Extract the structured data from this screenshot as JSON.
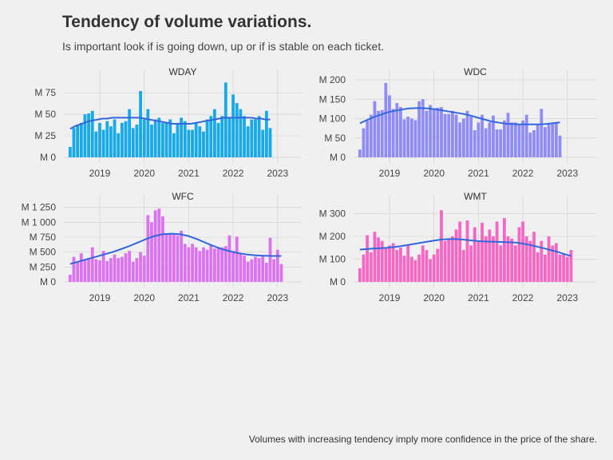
{
  "title": "Tendency of volume variations.",
  "subtitle": "Is important look if is going down, up or if is stable on each ticket.",
  "caption": "Volumes with increasing tendency imply more confidence in the price of the share.",
  "chart_data": {
    "type": "bar",
    "x_start": "2018-05",
    "x_ticks": [
      2019,
      2020,
      2021,
      2022,
      2023
    ],
    "grid": true,
    "facets": [
      {
        "name": "WDAY",
        "color": "#17a9e8",
        "y_ticks": [
          "M 0",
          "M 25",
          "M 50",
          "M 75"
        ],
        "y_tick_values": [
          0,
          25,
          50,
          75
        ],
        "ylim": [
          0,
          90
        ],
        "values": [
          12,
          34,
          38,
          40,
          50,
          51,
          54,
          30,
          40,
          32,
          42,
          36,
          44,
          28,
          40,
          42,
          56,
          34,
          38,
          77,
          44,
          56,
          38,
          44,
          46,
          40,
          40,
          44,
          28,
          40,
          46,
          42,
          32,
          32,
          40,
          36,
          30,
          44,
          48,
          56,
          40,
          48,
          87,
          46,
          73,
          63,
          56,
          48,
          36,
          44,
          44,
          48,
          32,
          54,
          34
        ],
        "trend": [
          33,
          36,
          38,
          40,
          42,
          43,
          44,
          45,
          45,
          46,
          46,
          46,
          46,
          46,
          46,
          46,
          45,
          44,
          43,
          42,
          41,
          40,
          39,
          39,
          39,
          39,
          39,
          40,
          41,
          42,
          43,
          44,
          45,
          46,
          46,
          46,
          46,
          46,
          46,
          46,
          45,
          45,
          44,
          44
        ]
      },
      {
        "name": "WDC",
        "color": "#8f8cf5",
        "y_ticks": [
          "M 0",
          "M 50",
          "M 100",
          "M 150",
          "M 200"
        ],
        "y_tick_values": [
          0,
          50,
          100,
          150,
          200
        ],
        "ylim": [
          0,
          200
        ],
        "values": [
          20,
          75,
          95,
          110,
          145,
          120,
          122,
          192,
          160,
          125,
          140,
          130,
          98,
          105,
          100,
          96,
          145,
          150,
          120,
          135,
          125,
          128,
          130,
          112,
          112,
          120,
          110,
          90,
          100,
          120,
          105,
          70,
          90,
          110,
          75,
          90,
          108,
          72,
          72,
          95,
          115,
          90,
          90,
          85,
          95,
          110,
          64,
          70,
          85,
          125,
          78,
          85,
          88,
          90,
          56
        ],
        "trend": [
          88,
          96,
          104,
          110,
          116,
          120,
          123,
          126,
          127,
          127,
          126,
          124,
          121,
          118,
          115,
          112,
          108,
          103,
          98,
          93,
          90,
          87,
          86,
          85,
          85,
          85,
          85,
          86,
          88,
          90
        ]
      },
      {
        "name": "WFC",
        "color": "#db73f0",
        "y_ticks": [
          "M 0",
          "M 250",
          "M 500",
          "M 750",
          "M 1 000",
          "M 1 250"
        ],
        "y_tick_values": [
          0,
          250,
          500,
          750,
          1000,
          1250
        ],
        "ylim": [
          0,
          1300
        ],
        "values": [
          120,
          420,
          330,
          480,
          380,
          400,
          580,
          380,
          360,
          520,
          350,
          400,
          460,
          400,
          420,
          480,
          520,
          340,
          400,
          500,
          440,
          1120,
          1000,
          1200,
          1230,
          1100,
          800,
          820,
          800,
          780,
          860,
          640,
          580,
          640,
          580,
          520,
          580,
          540,
          620,
          560,
          580,
          580,
          600,
          780,
          520,
          760,
          480,
          440,
          340,
          380,
          420,
          400,
          440,
          320,
          740,
          380,
          540,
          300
        ],
        "trend": [
          300,
          340,
          380,
          420,
          460,
          500,
          550,
          600,
          660,
          720,
          770,
          800,
          810,
          800,
          770,
          720,
          660,
          600,
          550,
          510,
          480,
          460,
          445,
          440,
          435,
          435
        ]
      },
      {
        "name": "WMT",
        "color": "#f567c4",
        "y_ticks": [
          "M 0",
          "M 100",
          "M 200",
          "M 300"
        ],
        "y_tick_values": [
          0,
          100,
          200,
          300
        ],
        "ylim": [
          0,
          340
        ],
        "values": [
          60,
          120,
          205,
          130,
          220,
          195,
          180,
          150,
          160,
          170,
          140,
          150,
          115,
          160,
          110,
          95,
          120,
          160,
          140,
          100,
          120,
          145,
          315,
          180,
          190,
          200,
          230,
          265,
          140,
          270,
          160,
          240,
          180,
          260,
          200,
          230,
          200,
          265,
          160,
          280,
          200,
          190,
          160,
          240,
          265,
          200,
          180,
          220,
          130,
          180,
          120,
          200,
          160,
          170,
          120,
          125,
          110,
          140
        ],
        "trend": [
          142,
          144,
          146,
          148,
          150,
          153,
          157,
          162,
          167,
          172,
          177,
          182,
          186,
          188,
          188,
          186,
          183,
          180,
          178,
          177,
          176,
          175,
          174,
          172,
          168,
          162,
          155,
          148,
          140,
          132,
          122,
          114
        ]
      }
    ]
  }
}
